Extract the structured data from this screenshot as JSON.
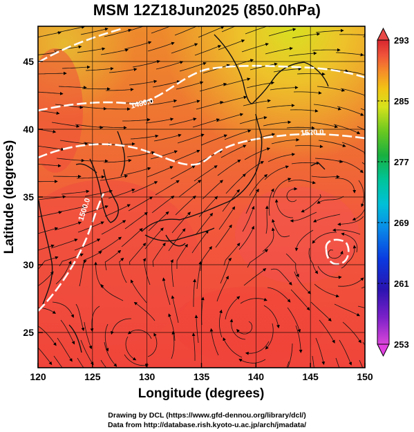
{
  "title": "MSM 12Z18Jun2025 (850.0hPa)",
  "x_axis": {
    "label": "Longitude (degrees)",
    "min": 120,
    "max": 150,
    "ticks": [
      "120",
      "125",
      "130",
      "135",
      "140",
      "145",
      "150"
    ]
  },
  "y_axis": {
    "label": "Latitude  (degrees)",
    "min": 22.4,
    "max": 47.6,
    "ticks": [
      "25",
      "30",
      "35",
      "40",
      "45"
    ]
  },
  "colorbar": {
    "min": 253,
    "max": 293,
    "labels": [
      "293",
      "285",
      "277",
      "269",
      "261",
      "253"
    ],
    "colors": [
      "#d946d9",
      "#3a10b0",
      "#0a3ae0",
      "#00b8e0",
      "#00c7a8",
      "#18b040",
      "#60c820",
      "#d2e21c",
      "#f2c414",
      "#f58a2a",
      "#f0533a",
      "#d8262f"
    ]
  },
  "contours": [
    {
      "label": "1480.0"
    },
    {
      "label": "1520.0"
    },
    {
      "label": "1500.0"
    }
  ],
  "credits": {
    "line1": "Drawing by DCL (https://www.gfd-dennou.org/library/dcl/)",
    "line2": "Data from http://database.rish.kyoto-u.ac.jp/arch/jmadata/"
  }
}
